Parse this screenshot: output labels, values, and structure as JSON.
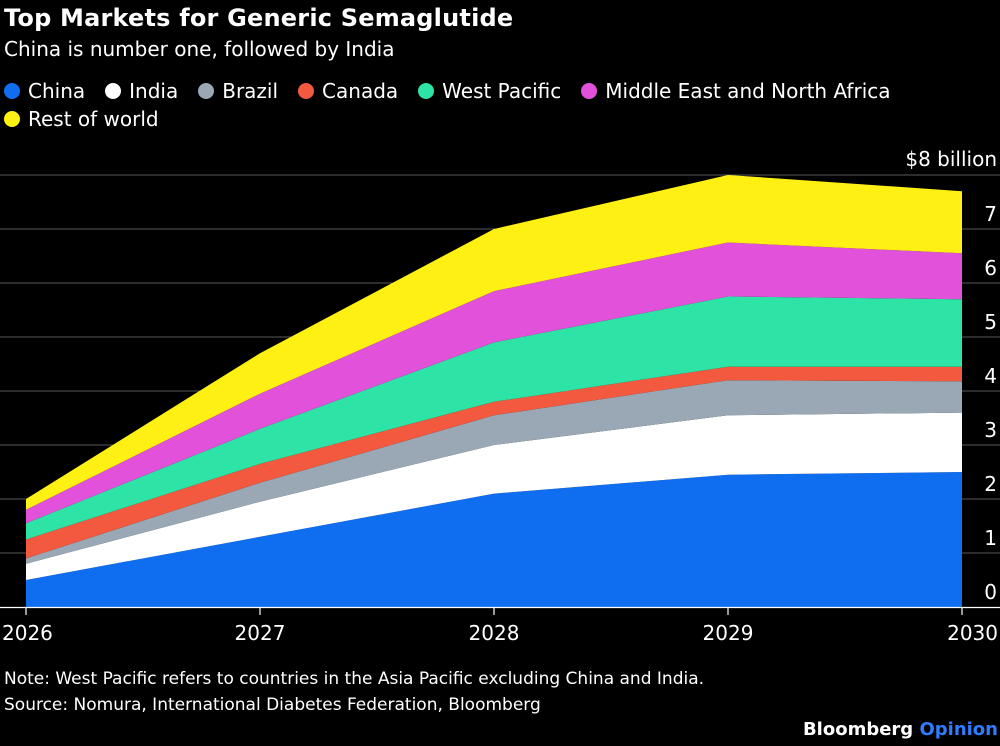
{
  "header": {
    "title": "Top Markets for Generic Semaglutide",
    "subtitle": "China is number one, followed by India"
  },
  "footer": {
    "note": "Note: West Pacific refers to countries in the Asia Pacific excluding China and India.",
    "source": "Source: Nomura, International Diabetes Federation, Bloomberg",
    "brand_main": "Bloomberg",
    "brand_accent": "Opinion"
  },
  "chart_data": {
    "type": "area",
    "stacked": true,
    "title": "Top Markets for Generic Semaglutide",
    "subtitle": "China is number one, followed by India",
    "xlabel": "",
    "ylabel": "",
    "y_unit_label": "$8 billion",
    "x": [
      "2026",
      "2027",
      "2028",
      "2029",
      "2030"
    ],
    "ylim": [
      0,
      8
    ],
    "yticks": [
      0,
      1,
      2,
      3,
      4,
      5,
      6,
      7,
      8
    ],
    "ytick_labels": [
      "0",
      "1",
      "2",
      "3",
      "4",
      "5",
      "6",
      "7",
      "$8 billion"
    ],
    "grid": true,
    "legend_position": "top",
    "series": [
      {
        "name": "China",
        "color": "#0f6ef0",
        "values": [
          0.5,
          1.3,
          2.1,
          2.45,
          2.5
        ]
      },
      {
        "name": "India",
        "color": "#ffffff",
        "values": [
          0.3,
          0.65,
          0.9,
          1.1,
          1.1
        ]
      },
      {
        "name": "Brazil",
        "color": "#9aa7b5",
        "values": [
          0.1,
          0.35,
          0.55,
          0.65,
          0.58
        ]
      },
      {
        "name": "Canada",
        "color": "#f2593f",
        "values": [
          0.35,
          0.35,
          0.25,
          0.25,
          0.27
        ]
      },
      {
        "name": "West Pacific",
        "color": "#2ee3a6",
        "values": [
          0.3,
          0.65,
          1.1,
          1.3,
          1.25
        ]
      },
      {
        "name": "Middle East and North Africa",
        "color": "#e251d9",
        "values": [
          0.25,
          0.65,
          0.95,
          1.0,
          0.85
        ]
      },
      {
        "name": "Rest of world",
        "color": "#fff014",
        "values": [
          0.2,
          0.75,
          1.15,
          1.25,
          1.15
        ]
      }
    ]
  }
}
